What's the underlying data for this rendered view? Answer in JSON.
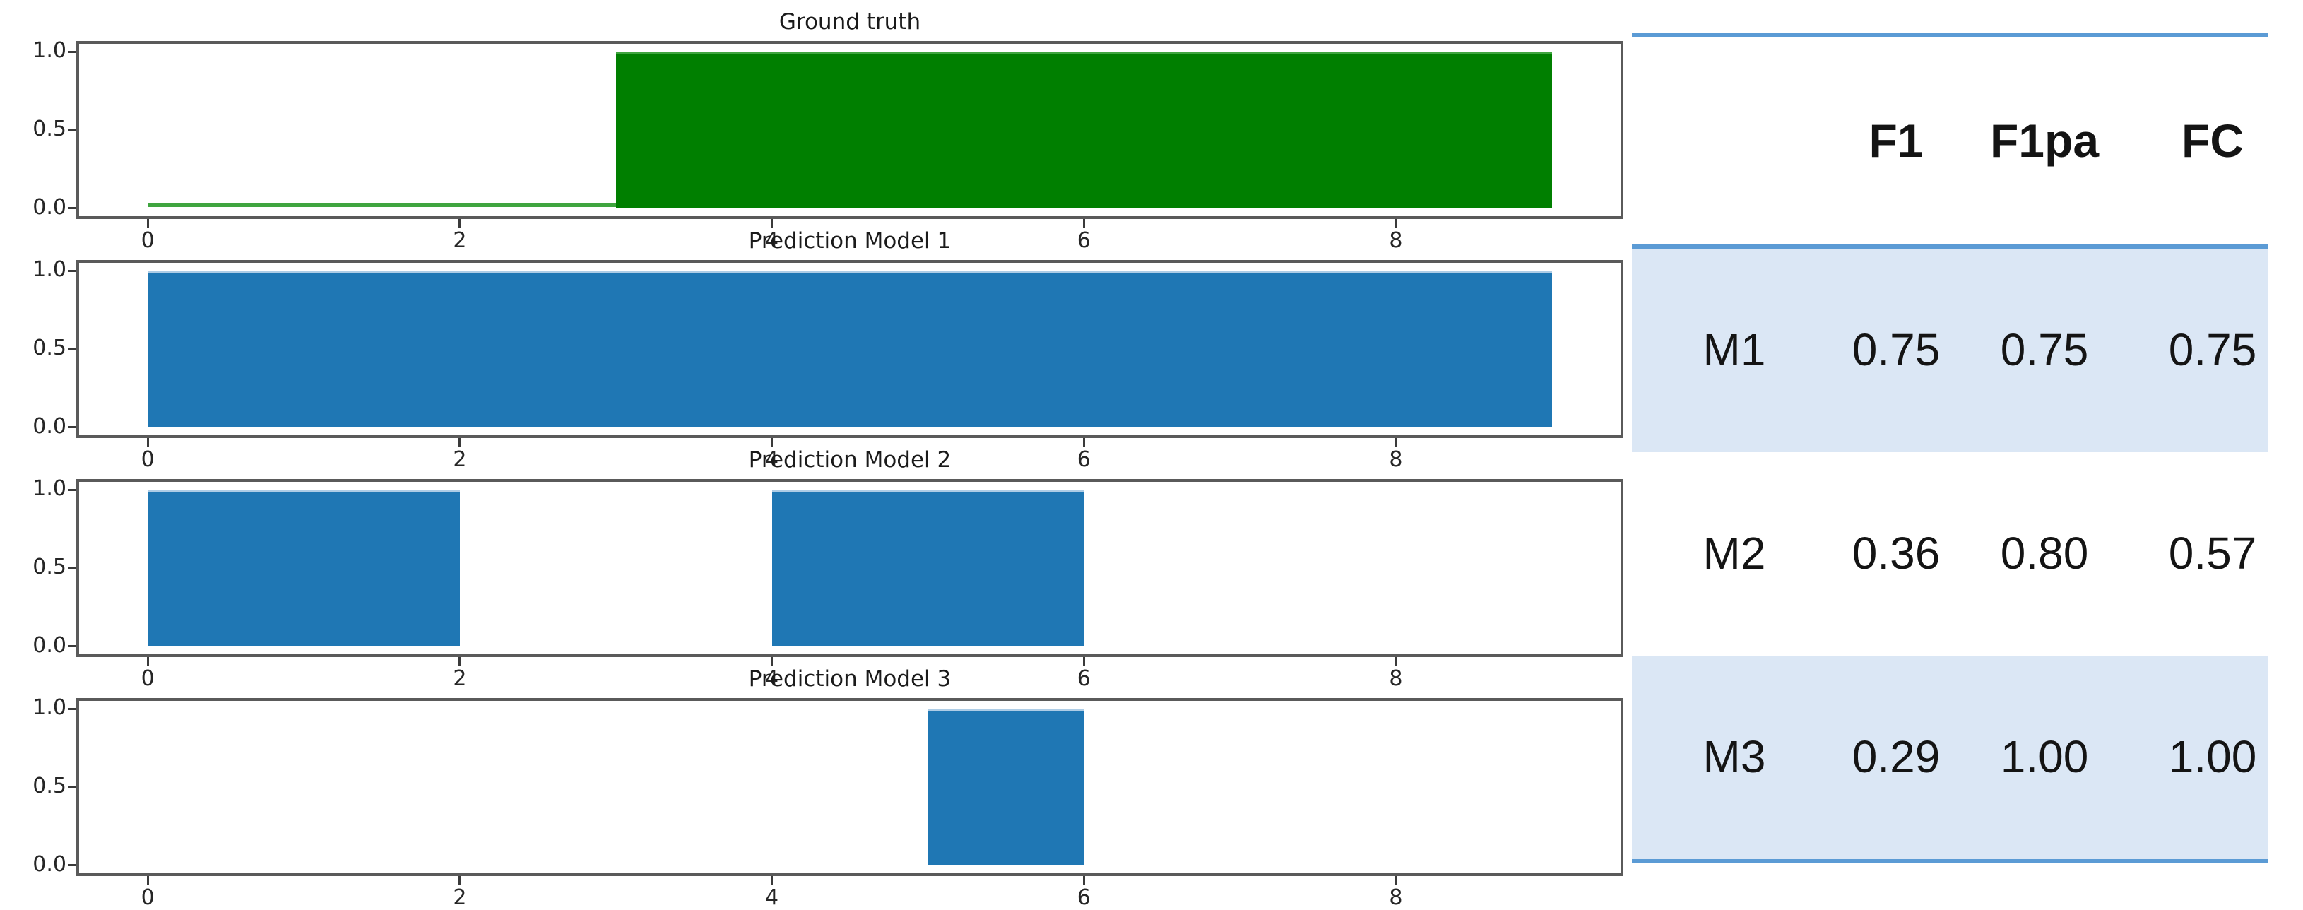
{
  "chart_data": [
    {
      "type": "area",
      "title": "Ground truth",
      "series_name": "ground-truth",
      "fill_color": "#007f00",
      "edge_color": "#3fa53f",
      "value_intervals": [
        [
          3,
          9
        ]
      ],
      "zero_value_intervals": [
        [
          0,
          3
        ]
      ],
      "xlim": [
        -0.44,
        9.44
      ],
      "ylim": [
        -0.05,
        1.05
      ],
      "xticks": [
        0,
        2,
        4,
        6,
        8
      ],
      "xtick_labels": [
        "0",
        "2",
        "4",
        "6",
        "8"
      ],
      "ytick_values": [
        1.0,
        0.5,
        0.0
      ],
      "ytick_labels": [
        "1.0",
        "0.5",
        "0.0"
      ],
      "grid": false,
      "legend": "none"
    },
    {
      "type": "area",
      "title": "Prediction Model 1",
      "series_name": "prediction-model-1",
      "fill_color": "#1f77b4",
      "edge_color": "#aecde6",
      "value_intervals": [
        [
          0,
          9
        ]
      ],
      "zero_value_intervals": [],
      "xlim": [
        -0.44,
        9.44
      ],
      "ylim": [
        -0.05,
        1.05
      ],
      "xticks": [
        0,
        2,
        4,
        6,
        8
      ],
      "xtick_labels": [
        "0",
        "2",
        "4",
        "6",
        "8"
      ],
      "ytick_values": [
        1.0,
        0.5,
        0.0
      ],
      "ytick_labels": [
        "1.0",
        "0.5",
        "0.0"
      ],
      "grid": false,
      "legend": "none"
    },
    {
      "type": "area",
      "title": "Prediction Model 2",
      "series_name": "prediction-model-2",
      "fill_color": "#1f77b4",
      "edge_color": "#aecde6",
      "value_intervals": [
        [
          0,
          2
        ],
        [
          4,
          6
        ]
      ],
      "zero_value_intervals": [],
      "xlim": [
        -0.44,
        9.44
      ],
      "ylim": [
        -0.05,
        1.05
      ],
      "xticks": [
        0,
        2,
        4,
        6,
        8
      ],
      "xtick_labels": [
        "0",
        "2",
        "4",
        "6",
        "8"
      ],
      "ytick_values": [
        1.0,
        0.5,
        0.0
      ],
      "ytick_labels": [
        "1.0",
        "0.5",
        "0.0"
      ],
      "grid": false,
      "legend": "none"
    },
    {
      "type": "area",
      "title": "Prediction Model 3",
      "series_name": "prediction-model-3",
      "fill_color": "#1f77b4",
      "edge_color": "#aecde6",
      "value_intervals": [
        [
          5,
          6
        ]
      ],
      "zero_value_intervals": [],
      "xlim": [
        -0.44,
        9.44
      ],
      "ylim": [
        -0.05,
        1.05
      ],
      "xticks": [
        0,
        2,
        4,
        6,
        8
      ],
      "xtick_labels": [
        "0",
        "2",
        "4",
        "6",
        "8"
      ],
      "ytick_values": [
        1.0,
        0.5,
        0.0
      ],
      "ytick_labels": [
        "1.0",
        "0.5",
        "0.0"
      ],
      "grid": false,
      "legend": "none"
    }
  ],
  "table": {
    "columns": [
      "F1",
      "F1pa",
      "FC"
    ],
    "rows": [
      {
        "model": "M1",
        "values": [
          "0.75",
          "0.75",
          "0.75"
        ]
      },
      {
        "model": "M2",
        "values": [
          "0.36",
          "0.80",
          "0.57"
        ]
      },
      {
        "model": "M3",
        "values": [
          "0.29",
          "1.00",
          "1.00"
        ]
      }
    ],
    "accent_color": "#5b9bd5",
    "band_color": "#dbe7f5",
    "text_color": "#141414"
  }
}
